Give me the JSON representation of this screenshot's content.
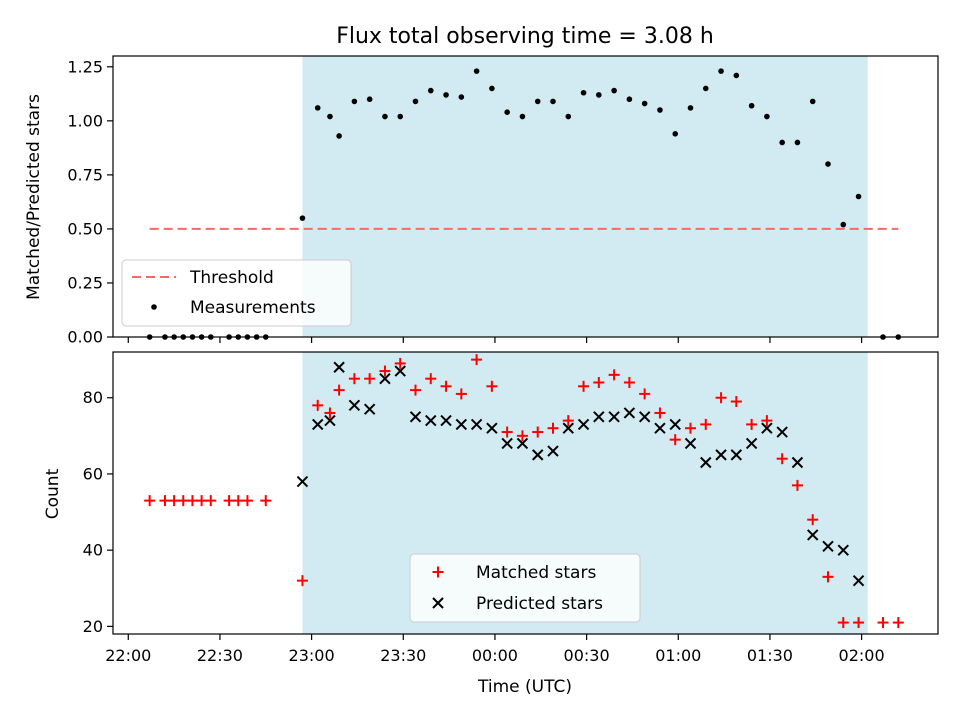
{
  "chart_data": {
    "type": "scatter",
    "title": "Flux total observing time = 3.08 h",
    "xlabel": "Time (UTC)",
    "x_ticks": [
      "22:00",
      "22:30",
      "23:00",
      "23:30",
      "00:00",
      "00:30",
      "01:00",
      "01:30",
      "02:00"
    ],
    "x_range": [
      "21:55",
      "02:25"
    ],
    "observing_window": [
      "22:57",
      "02:02"
    ],
    "colors": {
      "window": "#add8e6",
      "threshold": "#ff6666",
      "measurements": "#000000",
      "matched": "#ff0000",
      "predicted": "#000000"
    },
    "panels": [
      {
        "ylabel": "Matched/Predicted stars",
        "ylim": [
          0,
          1.3
        ],
        "y_ticks": [
          "0.00",
          "0.25",
          "0.50",
          "0.75",
          "1.00",
          "1.25"
        ],
        "legend_position": "lower-left",
        "threshold": {
          "name": "Threshold",
          "value": 0.5,
          "x_range": [
            "22:07",
            "02:12"
          ]
        },
        "series": [
          {
            "name": "Measurements",
            "marker": "dot",
            "points": [
              [
                "22:07",
                0.0
              ],
              [
                "22:12",
                0.0
              ],
              [
                "22:15",
                0.0
              ],
              [
                "22:18",
                0.0
              ],
              [
                "22:21",
                0.0
              ],
              [
                "22:24",
                0.0
              ],
              [
                "22:27",
                0.0
              ],
              [
                "22:33",
                0.0
              ],
              [
                "22:36",
                0.0
              ],
              [
                "22:39",
                0.0
              ],
              [
                "22:42",
                0.0
              ],
              [
                "22:45",
                0.0
              ],
              [
                "22:57",
                0.55
              ],
              [
                "23:02",
                1.06
              ],
              [
                "23:06",
                1.02
              ],
              [
                "23:09",
                0.93
              ],
              [
                "23:14",
                1.09
              ],
              [
                "23:19",
                1.1
              ],
              [
                "23:24",
                1.02
              ],
              [
                "23:29",
                1.02
              ],
              [
                "23:34",
                1.09
              ],
              [
                "23:39",
                1.14
              ],
              [
                "23:44",
                1.12
              ],
              [
                "23:49",
                1.11
              ],
              [
                "23:54",
                1.23
              ],
              [
                "23:59",
                1.15
              ],
              [
                "00:04",
                1.04
              ],
              [
                "00:09",
                1.02
              ],
              [
                "00:14",
                1.09
              ],
              [
                "00:19",
                1.09
              ],
              [
                "00:24",
                1.02
              ],
              [
                "00:29",
                1.13
              ],
              [
                "00:34",
                1.12
              ],
              [
                "00:39",
                1.14
              ],
              [
                "00:44",
                1.1
              ],
              [
                "00:49",
                1.08
              ],
              [
                "00:54",
                1.05
              ],
              [
                "00:59",
                0.94
              ],
              [
                "01:04",
                1.06
              ],
              [
                "01:09",
                1.15
              ],
              [
                "01:14",
                1.23
              ],
              [
                "01:19",
                1.21
              ],
              [
                "01:24",
                1.07
              ],
              [
                "01:29",
                1.02
              ],
              [
                "01:34",
                0.9
              ],
              [
                "01:39",
                0.9
              ],
              [
                "01:44",
                1.09
              ],
              [
                "01:49",
                0.8
              ],
              [
                "01:54",
                0.52
              ],
              [
                "01:59",
                0.65
              ],
              [
                "02:07",
                0.0
              ],
              [
                "02:12",
                0.0
              ]
            ]
          }
        ]
      },
      {
        "ylabel": "Count",
        "ylim": [
          18,
          92
        ],
        "y_ticks": [
          "20",
          "40",
          "60",
          "80"
        ],
        "legend_position": "lower-center",
        "series": [
          {
            "name": "Matched stars",
            "marker": "plus",
            "points": [
              [
                "22:07",
                53
              ],
              [
                "22:12",
                53
              ],
              [
                "22:15",
                53
              ],
              [
                "22:18",
                53
              ],
              [
                "22:21",
                53
              ],
              [
                "22:24",
                53
              ],
              [
                "22:27",
                53
              ],
              [
                "22:33",
                53
              ],
              [
                "22:36",
                53
              ],
              [
                "22:39",
                53
              ],
              [
                "22:45",
                53
              ],
              [
                "22:57",
                32
              ],
              [
                "23:02",
                78
              ],
              [
                "23:06",
                76
              ],
              [
                "23:09",
                82
              ],
              [
                "23:14",
                85
              ],
              [
                "23:19",
                85
              ],
              [
                "23:24",
                87
              ],
              [
                "23:29",
                89
              ],
              [
                "23:34",
                82
              ],
              [
                "23:39",
                85
              ],
              [
                "23:44",
                83
              ],
              [
                "23:49",
                81
              ],
              [
                "23:54",
                90
              ],
              [
                "23:59",
                83
              ],
              [
                "00:04",
                71
              ],
              [
                "00:09",
                70
              ],
              [
                "00:14",
                71
              ],
              [
                "00:19",
                72
              ],
              [
                "00:24",
                74
              ],
              [
                "00:29",
                83
              ],
              [
                "00:34",
                84
              ],
              [
                "00:39",
                86
              ],
              [
                "00:44",
                84
              ],
              [
                "00:49",
                81
              ],
              [
                "00:54",
                76
              ],
              [
                "00:59",
                69
              ],
              [
                "01:04",
                72
              ],
              [
                "01:09",
                73
              ],
              [
                "01:14",
                80
              ],
              [
                "01:19",
                79
              ],
              [
                "01:24",
                73
              ],
              [
                "01:29",
                74
              ],
              [
                "01:34",
                64
              ],
              [
                "01:39",
                57
              ],
              [
                "01:44",
                48
              ],
              [
                "01:49",
                33
              ],
              [
                "01:54",
                21
              ],
              [
                "01:59",
                21
              ],
              [
                "02:07",
                21
              ],
              [
                "02:12",
                21
              ]
            ]
          },
          {
            "name": "Predicted stars",
            "marker": "x",
            "points": [
              [
                "22:57",
                58
              ],
              [
                "23:02",
                73
              ],
              [
                "23:06",
                74
              ],
              [
                "23:09",
                88
              ],
              [
                "23:14",
                78
              ],
              [
                "23:19",
                77
              ],
              [
                "23:24",
                85
              ],
              [
                "23:29",
                87
              ],
              [
                "23:34",
                75
              ],
              [
                "23:39",
                74
              ],
              [
                "23:44",
                74
              ],
              [
                "23:49",
                73
              ],
              [
                "23:54",
                73
              ],
              [
                "23:59",
                72
              ],
              [
                "00:04",
                68
              ],
              [
                "00:09",
                68
              ],
              [
                "00:14",
                65
              ],
              [
                "00:19",
                66
              ],
              [
                "00:24",
                72
              ],
              [
                "00:29",
                73
              ],
              [
                "00:34",
                75
              ],
              [
                "00:39",
                75
              ],
              [
                "00:44",
                76
              ],
              [
                "00:49",
                75
              ],
              [
                "00:54",
                72
              ],
              [
                "00:59",
                73
              ],
              [
                "01:04",
                68
              ],
              [
                "01:09",
                63
              ],
              [
                "01:14",
                65
              ],
              [
                "01:19",
                65
              ],
              [
                "01:24",
                68
              ],
              [
                "01:29",
                72
              ],
              [
                "01:34",
                71
              ],
              [
                "01:39",
                63
              ],
              [
                "01:44",
                44
              ],
              [
                "01:49",
                41
              ],
              [
                "01:54",
                40
              ],
              [
                "01:59",
                32
              ]
            ]
          }
        ]
      }
    ]
  }
}
